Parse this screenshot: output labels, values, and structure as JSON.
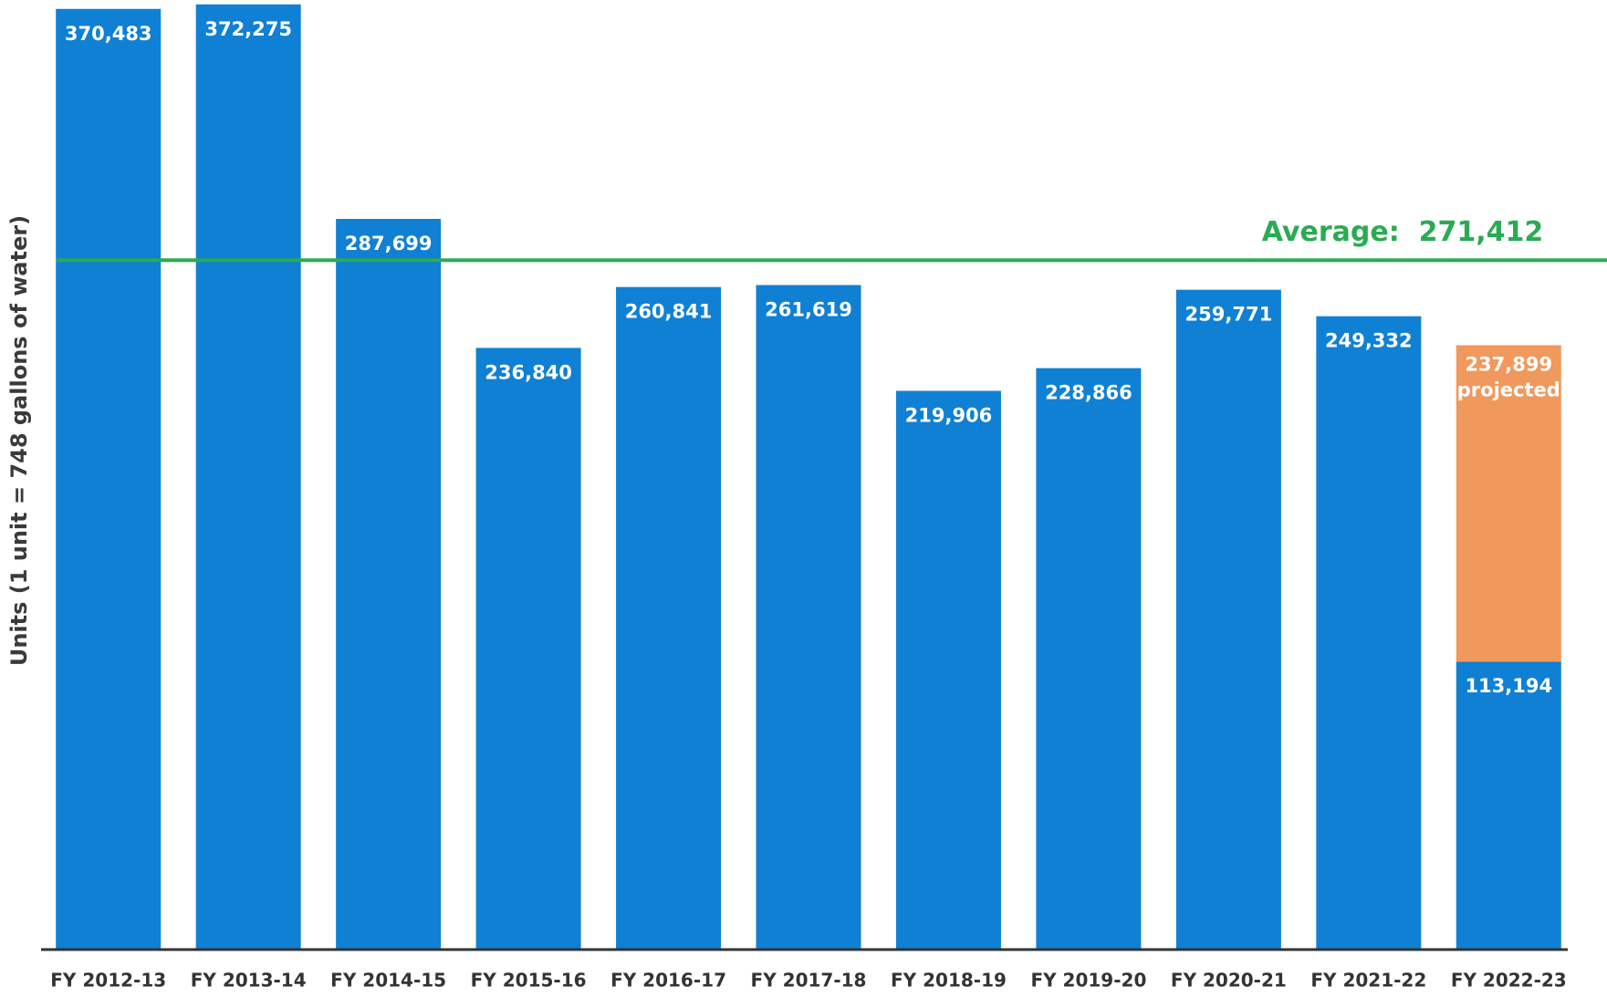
{
  "chart_data": {
    "type": "bar",
    "y_label": "Units (1 unit = 748 gallons of water)",
    "categories": [
      "FY 2012-13",
      "FY 2013-14",
      "FY 2014-15",
      "FY 2015-16",
      "FY 2016-17",
      "FY 2017-18",
      "FY 2018-19",
      "FY 2019-20",
      "FY 2020-21",
      "FY 2021-22",
      "FY 2022-23"
    ],
    "series": [
      {
        "color": "#0f80d4",
        "values": [
          370483,
          372275,
          287699,
          236840,
          260841,
          261619,
          219906,
          228866,
          259771,
          249332,
          113194
        ],
        "value_labels": [
          "370,483",
          "372,275",
          "287,699",
          "236,840",
          "260,841",
          "261,619",
          "219,906",
          "228,866",
          "259,771",
          "249,332",
          "113,194"
        ]
      },
      {
        "color": "#f1985c",
        "values": [
          null,
          null,
          null,
          null,
          null,
          null,
          null,
          null,
          null,
          null,
          124705
        ]
      }
    ],
    "projected": {
      "value": 237899,
      "label": "237,899",
      "text": "projected"
    },
    "average": {
      "value": 271412,
      "label": "Average:  271,412",
      "color": "#2aab52"
    },
    "ylim": [
      0,
      374000
    ]
  }
}
